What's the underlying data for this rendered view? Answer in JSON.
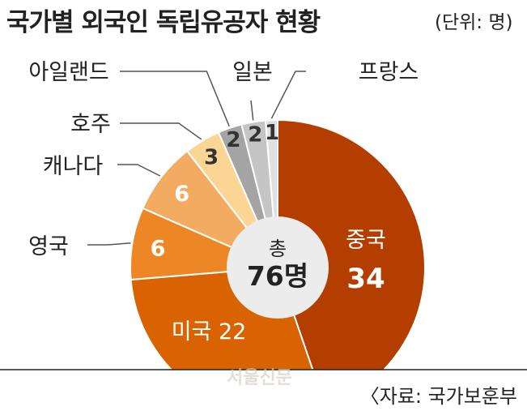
{
  "title": "국가별 외국인 독립유공자 현황",
  "unit": "(단위: 명)",
  "source": "〈자료: 국가보훈부",
  "watermark": "서울신문",
  "chart_data": {
    "type": "pie",
    "title": "국가별 외국인 독립유공자 현황",
    "unit": "(단위: 명)",
    "center_label": {
      "line1": "총",
      "line2": "76명"
    },
    "slices": [
      {
        "label": "중국",
        "value": 34,
        "color": "#b43d00",
        "inside_label": true
      },
      {
        "label": "미국",
        "value": 22,
        "color": "#d86300",
        "inside_label": true
      },
      {
        "label": "영국",
        "value": 6,
        "color": "#ed8726",
        "inside_label": false
      },
      {
        "label": "캐나다",
        "value": 6,
        "color": "#f2ab61",
        "inside_label": false
      },
      {
        "label": "호주",
        "value": 3,
        "color": "#fbd594",
        "inside_label": false
      },
      {
        "label": "아일랜드",
        "value": 2,
        "color": "#a4a4a4",
        "inside_label": false
      },
      {
        "label": "일본",
        "value": 2,
        "color": "#c5c5c5",
        "inside_label": false
      },
      {
        "label": "프랑스",
        "value": 1,
        "color": "#e0e0e0",
        "inside_label": false
      }
    ]
  }
}
